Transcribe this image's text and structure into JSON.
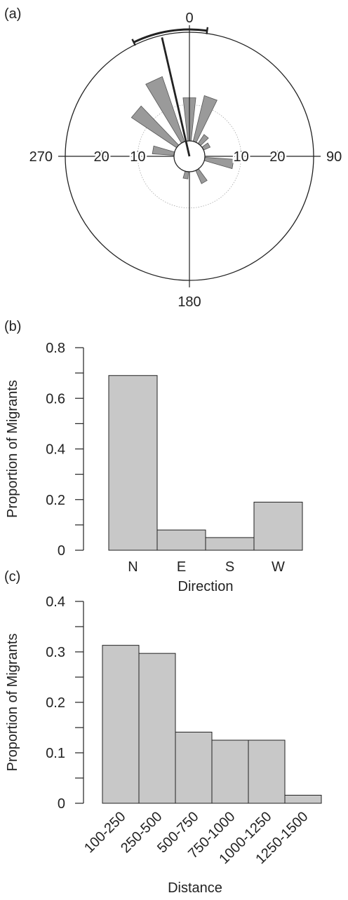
{
  "colors": {
    "bar_fill": "#c8c8c8",
    "rose_fill": "#9a9a9a",
    "ink": "#222222",
    "gridline": "#aaaaaa"
  },
  "chart_data": [
    {
      "panel": "(a)",
      "type": "rose",
      "direction_labels": [
        "0",
        "90",
        "180",
        "270"
      ],
      "radial_tick_labels": [
        "20",
        "10",
        "10",
        "20"
      ],
      "rlim": [
        0,
        30
      ],
      "inner_gridline": 10,
      "bin_width_deg": 20,
      "petals": [
        {
          "angle_deg": 0,
          "count": 12
        },
        {
          "angle_deg": 20,
          "count": 13
        },
        {
          "angle_deg": 40,
          "count": 3
        },
        {
          "angle_deg": 60,
          "count": 2
        },
        {
          "angle_deg": 100,
          "count": 8
        },
        {
          "angle_deg": 150,
          "count": 4
        },
        {
          "angle_deg": 190,
          "count": 2
        },
        {
          "angle_deg": 280,
          "count": 6
        },
        {
          "angle_deg": 310,
          "count": 15
        },
        {
          "angle_deg": 335,
          "count": 19
        }
      ],
      "mean_direction_deg": 347,
      "arc_range_deg": [
        334,
        8
      ]
    },
    {
      "panel": "(b)",
      "type": "bar",
      "categories": [
        "N",
        "E",
        "S",
        "W"
      ],
      "values": [
        0.69,
        0.08,
        0.05,
        0.19
      ],
      "xlabel": "Direction",
      "ylabel": "Proportion of Migrants",
      "ylim": [
        0,
        0.8
      ],
      "y_ticks": [
        0,
        0.2,
        0.4,
        0.6,
        0.8
      ],
      "y_tick_labels": [
        "0",
        "0.2",
        "0.4",
        "0.6",
        "0.8"
      ],
      "y_minor_step": 0.1
    },
    {
      "panel": "(c)",
      "type": "bar",
      "categories": [
        "100-250",
        "250-500",
        "500-750",
        "750-1000",
        "1000-1250",
        "1250-1500"
      ],
      "values": [
        0.313,
        0.297,
        0.141,
        0.125,
        0.125,
        0.016
      ],
      "xlabel": "Distance",
      "ylabel": "Proportion of Migrants",
      "ylim": [
        0,
        0.4
      ],
      "y_ticks": [
        0,
        0.1,
        0.2,
        0.3,
        0.4
      ],
      "y_tick_labels": [
        "0",
        "0.1",
        "0.2",
        "0.3",
        "0.4"
      ],
      "y_minor_step": 0.05
    }
  ]
}
